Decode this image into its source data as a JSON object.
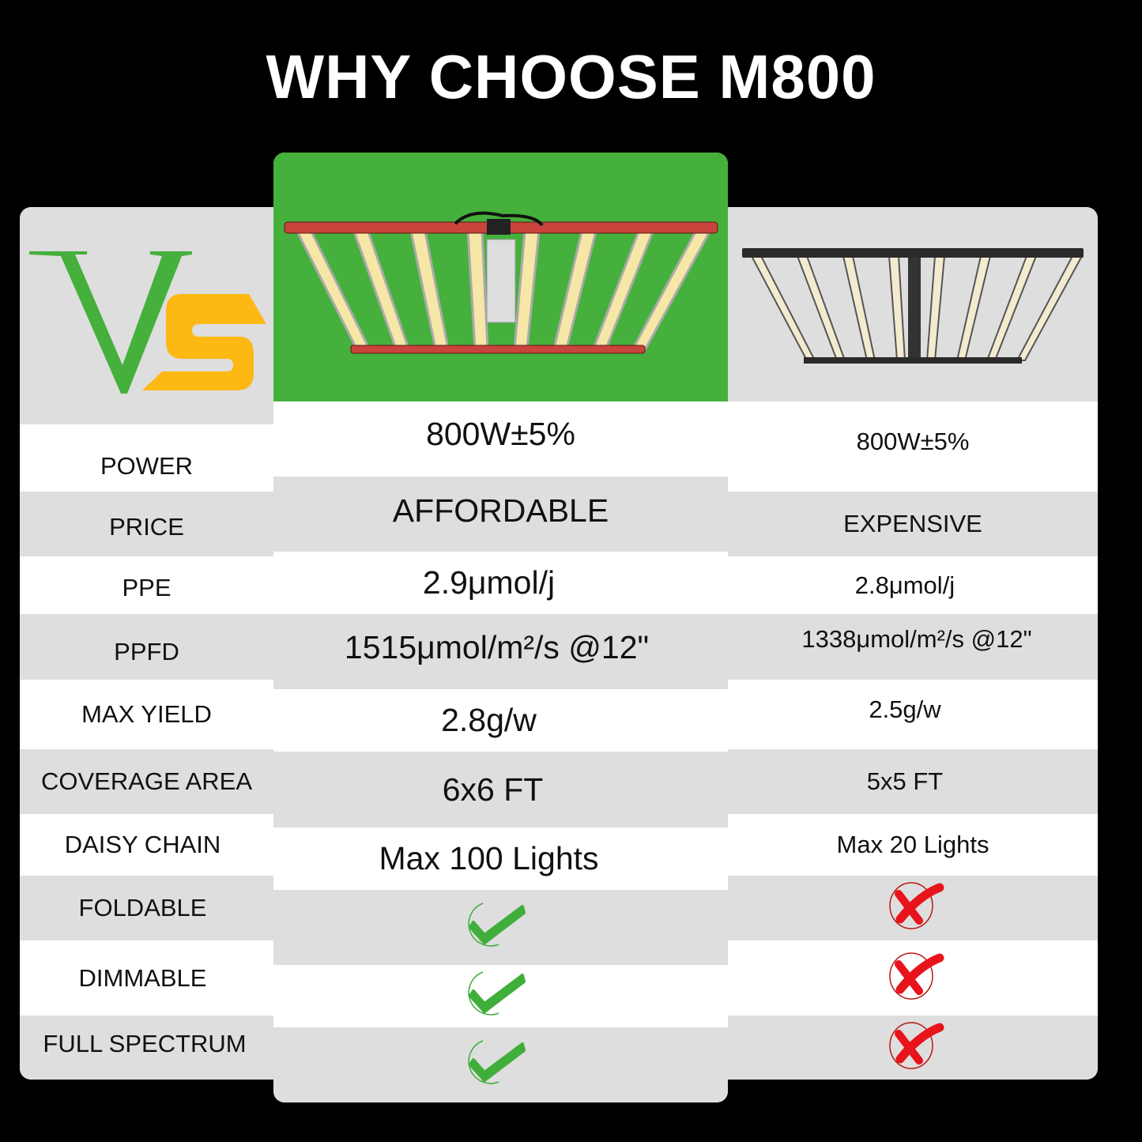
{
  "title": "WHY CHOOSE M800",
  "logo_text": "Vs",
  "colors": {
    "green": "#45b03c",
    "yellow": "#fdb813",
    "check": "#3fae3a",
    "cross": "#e8141b",
    "row_gray": "#dedede"
  },
  "rows": [
    {
      "label": "POWER",
      "m800": "800W±5%",
      "other": "800W±5%"
    },
    {
      "label": "PRICE",
      "m800": "AFFORDABLE",
      "other": "EXPENSIVE"
    },
    {
      "label": "PPE",
      "m800": "2.9μmol/j",
      "other": "2.8μmol/j"
    },
    {
      "label": "PPFD",
      "m800": "1515μmol/m²/s @12\"",
      "other": "1338μmol/m²/s @12\""
    },
    {
      "label": "MAX YIELD",
      "m800": "2.8g/w",
      "other": "2.5g/w"
    },
    {
      "label": "COVERAGE AREA",
      "m800": "6x6 FT",
      "other": "5x5 FT"
    },
    {
      "label": "DAISY CHAIN",
      "m800": "Max 100 Lights",
      "other": "Max 20 Lights"
    },
    {
      "label": "FOLDABLE",
      "m800": "check-icon",
      "other": "cross-icon"
    },
    {
      "label": "DIMMABLE",
      "m800": "check-icon",
      "other": "cross-icon"
    },
    {
      "label": "FULL SPECTRUM",
      "m800": "check-icon",
      "other": "cross-icon"
    }
  ]
}
